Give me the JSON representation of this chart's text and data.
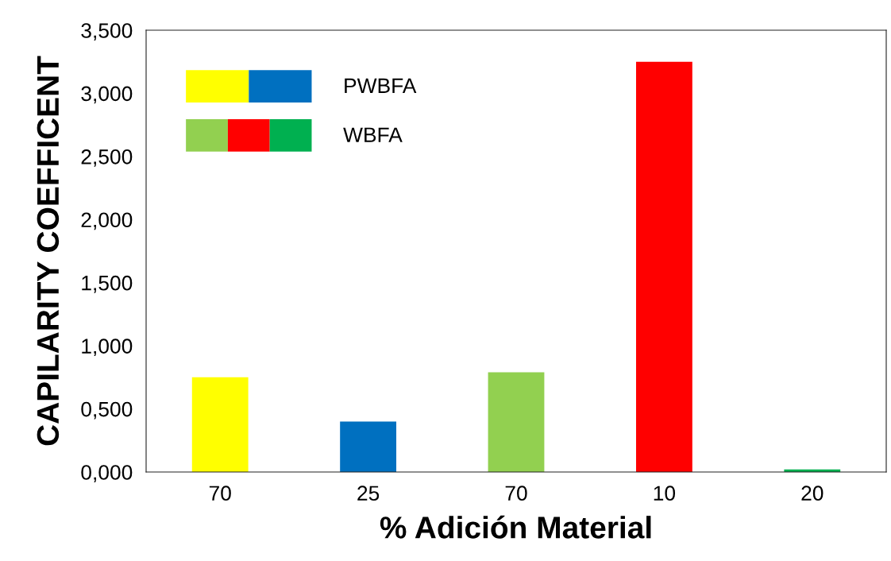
{
  "chart_data": {
    "type": "bar",
    "xlabel": "% Adición Material",
    "ylabel": "CAPILARITY COEFFICENT",
    "categories": [
      "70",
      "25",
      "70",
      "10",
      "20"
    ],
    "series": [
      {
        "name": "PWBFA",
        "colors": [
          "#ffff00",
          "#0070c0",
          null,
          null,
          null
        ],
        "values": [
          0.75,
          0.4,
          null,
          null,
          null
        ]
      },
      {
        "name": "WBFA",
        "colors": [
          null,
          null,
          "#92d050",
          "#ff0000",
          "#00b050"
        ],
        "values": [
          null,
          null,
          0.79,
          3.25,
          0.02
        ]
      }
    ],
    "ylim": [
      0,
      3.5
    ],
    "yticks": [
      {
        "value": 0,
        "label": "0,000"
      },
      {
        "value": 0.5,
        "label": "0,500"
      },
      {
        "value": 1,
        "label": "1,000"
      },
      {
        "value": 1.5,
        "label": "1,500"
      },
      {
        "value": 2,
        "label": "2,000"
      },
      {
        "value": 2.5,
        "label": "2,500"
      },
      {
        "value": 3,
        "label": "3,000"
      },
      {
        "value": 3.5,
        "label": "3,500"
      }
    ],
    "legend": "top left",
    "grid": false
  }
}
